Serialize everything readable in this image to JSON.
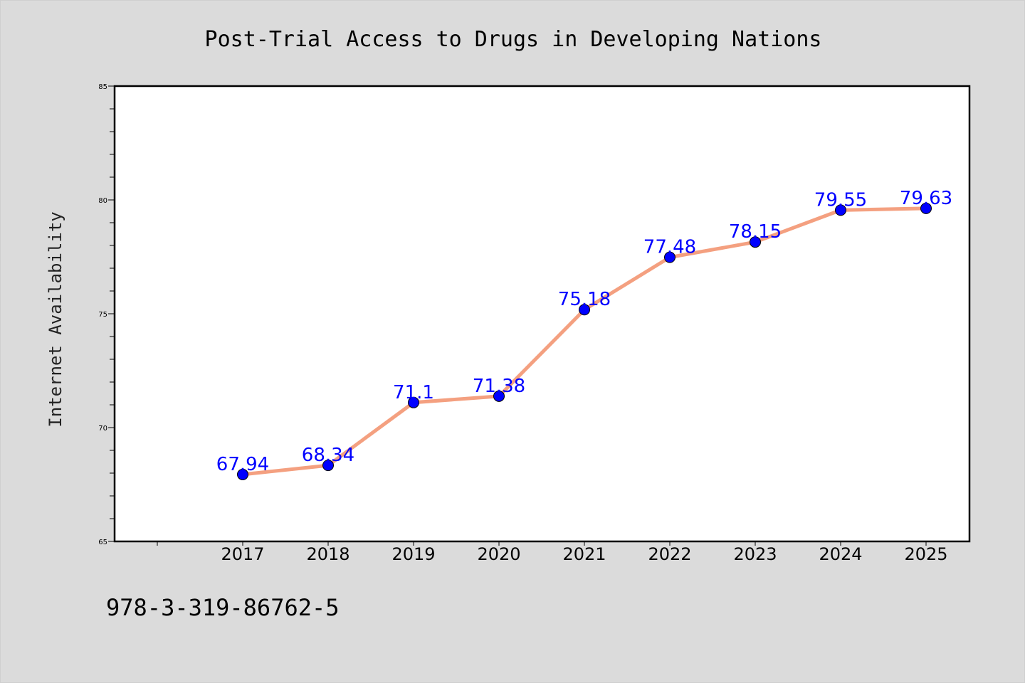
{
  "chart_data": {
    "type": "line",
    "title": "Post-Trial Access to Drugs in Developing Nations",
    "ylabel": "Internet Availability",
    "xlabel": "",
    "categories": [
      "2017",
      "2018",
      "2019",
      "2020",
      "2021",
      "2022",
      "2023",
      "2024",
      "2025"
    ],
    "series": [
      {
        "values": [
          67.94,
          68.34,
          71.1,
          71.38,
          75.18,
          77.48,
          78.15,
          79.55,
          79.63
        ],
        "labels": [
          "67.94",
          "68.34",
          "71.1",
          "71.38",
          "75.18",
          "77.48",
          "78.15",
          "79.55",
          "79.63"
        ]
      }
    ],
    "ylim": [
      65,
      85
    ],
    "yticks": [
      "65",
      "70",
      "75",
      "80",
      "85"
    ],
    "grid": false,
    "legend": "none",
    "colors": {
      "line": "#f4a080",
      "marker": "#0000ff",
      "label": "#0000ff",
      "plot_background": "#ffffff",
      "page_background": "#dbdbdb"
    }
  },
  "footer": {
    "isbn": "978-3-319-86762-5"
  }
}
